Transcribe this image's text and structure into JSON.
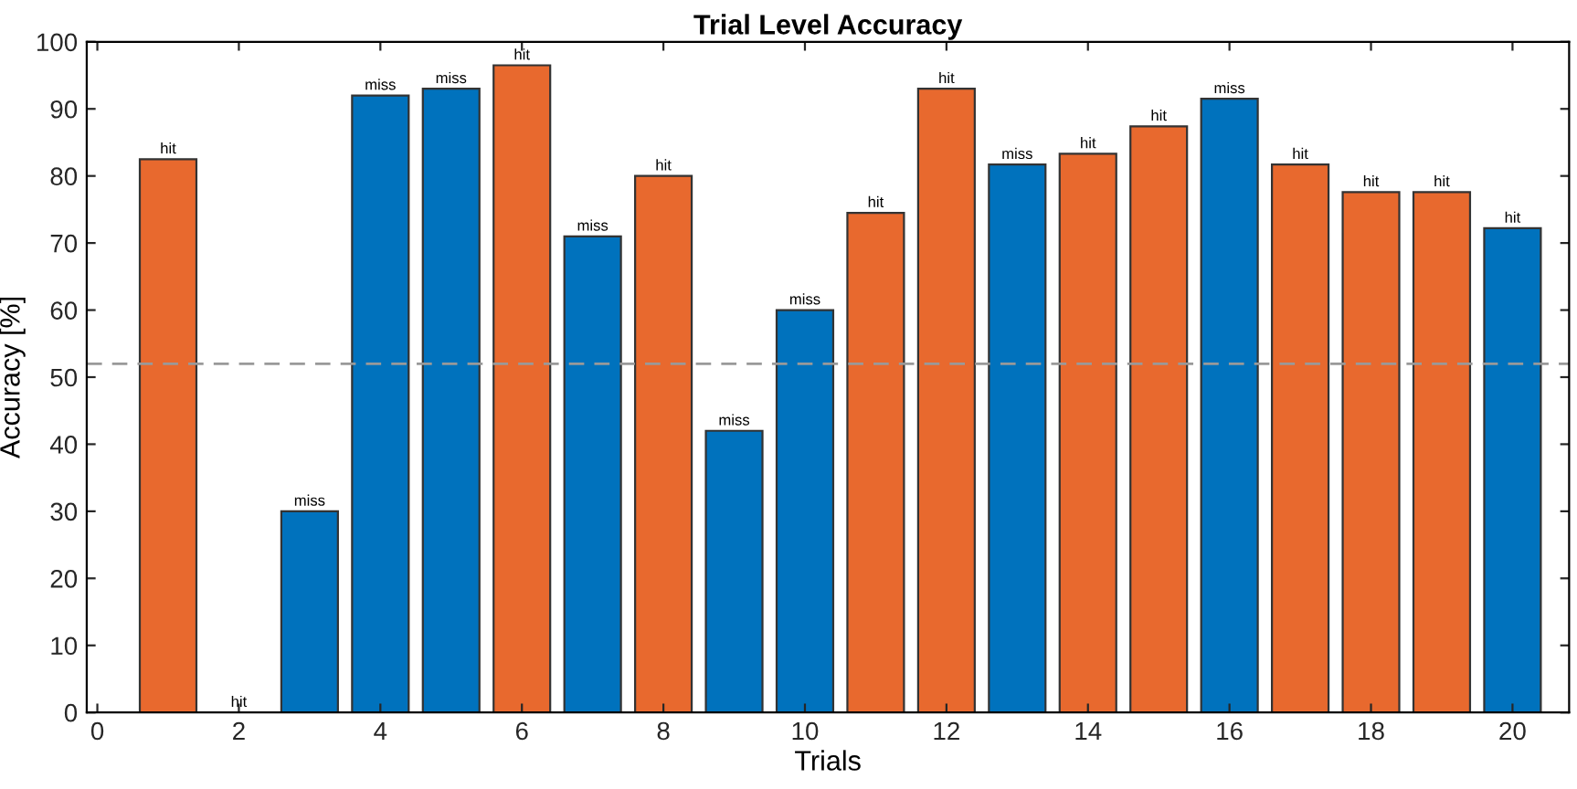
{
  "chart_data": {
    "type": "bar",
    "title": "Trial Level Accuracy",
    "xlabel": "Trials",
    "ylabel": "Accuracy [%]",
    "x": [
      1,
      2,
      3,
      4,
      5,
      6,
      7,
      8,
      9,
      10,
      11,
      12,
      13,
      14,
      15,
      16,
      17,
      18,
      19,
      20
    ],
    "values": [
      82.5,
      0,
      30,
      92,
      93,
      96.5,
      71,
      80,
      42,
      60,
      74.5,
      93,
      81.7,
      83.3,
      87.4,
      91.5,
      81.7,
      77.6,
      77.6,
      72.2
    ],
    "colors": [
      "#e8692e",
      "#333333",
      "#0072bd",
      "#0072bd",
      "#0072bd",
      "#e8692e",
      "#0072bd",
      "#e8692e",
      "#0072bd",
      "#0072bd",
      "#e8692e",
      "#e8692e",
      "#0072bd",
      "#e8692e",
      "#e8692e",
      "#0072bd",
      "#e8692e",
      "#e8692e",
      "#e8692e",
      "#0072bd"
    ],
    "value_labels": [
      "hit",
      "hit",
      "miss",
      "miss",
      "miss",
      "hit",
      "miss",
      "hit",
      "miss",
      "miss",
      "hit",
      "hit",
      "miss",
      "hit",
      "hit",
      "miss",
      "hit",
      "hit",
      "hit",
      "hit"
    ],
    "xlim": [
      -0.15,
      20.8
    ],
    "ylim": [
      0,
      100
    ],
    "xticks": [
      0,
      2,
      4,
      6,
      8,
      10,
      12,
      14,
      16,
      18,
      20
    ],
    "yticks": [
      0,
      10,
      20,
      30,
      40,
      50,
      60,
      70,
      80,
      90,
      100
    ],
    "ref_lines": [
      {
        "axis": "y",
        "value": 52,
        "label": null,
        "color": "#999999",
        "line_style": "dashed"
      }
    ],
    "grid": false,
    "legend": false
  }
}
